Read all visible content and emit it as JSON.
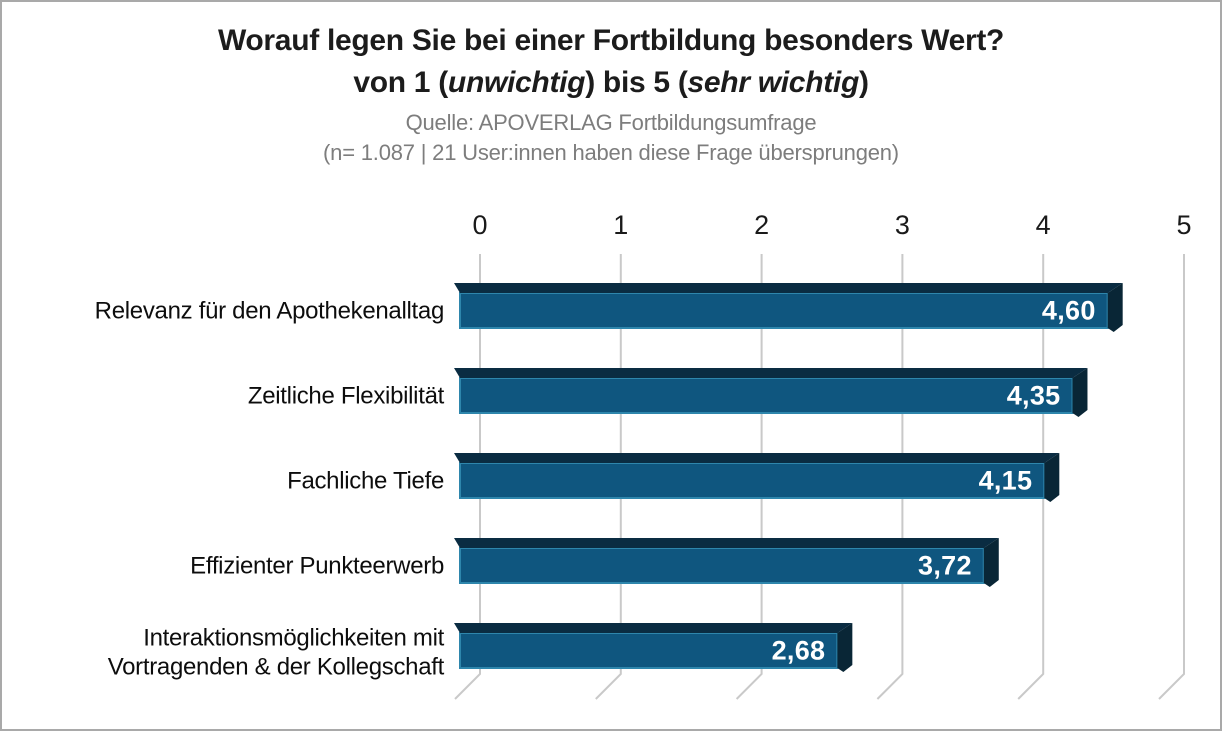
{
  "page": {
    "background": "#ffffff",
    "border_color": "#a9a9a9"
  },
  "header": {
    "title": "Worauf legen Sie bei einer Fortbildung besonders Wert?",
    "subtitle": {
      "prefix": "von 1 (",
      "italic1": "unwichtig",
      "mid": ") bis 5 (",
      "italic2": "sehr wichtig",
      "suffix": ")"
    },
    "source": "Quelle: APOVERLAG Fortbildungsumfrage",
    "sample_note": "(n= 1.087 | 21 User:innen haben diese Frage übersprungen)"
  },
  "chart_data": {
    "type": "bar",
    "orientation": "horizontal",
    "style": "3d-extruded",
    "title": "Worauf legen Sie bei einer Fortbildung besonders Wert? von 1 (unwichtig) bis 5 (sehr wichtig)",
    "categories": [
      "Relevanz für den Apothekenalltag",
      "Zeitliche Flexibilität",
      "Fachliche Tiefe",
      "Effizienter Punkteerwerb",
      "Interaktionsmöglichkeiten mit Vortragenden & der Kollegschaft"
    ],
    "category_label_lines": [
      [
        "Relevanz für den Apothekenalltag"
      ],
      [
        "Zeitliche Flexibilität"
      ],
      [
        "Fachliche Tiefe"
      ],
      [
        "Effizienter Punkteerwerb"
      ],
      [
        "Interaktionsmöglichkeiten mit",
        "Vortragenden & der Kollegschaft"
      ]
    ],
    "values": [
      4.6,
      4.35,
      4.15,
      3.72,
      2.68
    ],
    "value_labels": [
      "4,60",
      "4,35",
      "4,15",
      "3,72",
      "2,68"
    ],
    "x_axis": {
      "min": 0,
      "max": 5,
      "ticks": [
        0,
        1,
        2,
        3,
        4,
        5
      ],
      "tick_labels": [
        "0",
        "1",
        "2",
        "3",
        "4",
        "5"
      ],
      "position": "top"
    },
    "grid": true,
    "legend": false,
    "colors": {
      "bar_front": "#0f567f",
      "bar_top": "#0a2c42",
      "bar_side": "#09captured",
      "bar_side_face": "#092636",
      "bar_edge_highlight": "#2e86ac",
      "gridline": "#c9c9c9",
      "tick_label": "#1a1a1a",
      "category_label": "#0d0d0d",
      "value_label": "#ffffff",
      "muted_text": "#7d7d7d"
    }
  }
}
